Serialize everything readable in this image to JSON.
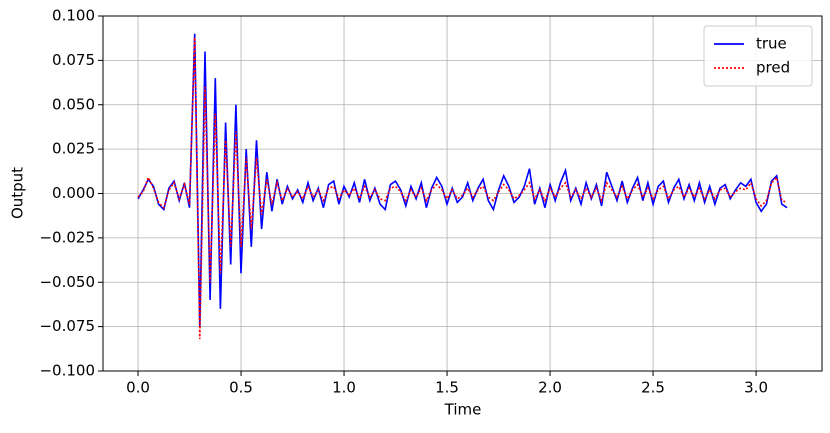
{
  "chart_data": {
    "type": "line",
    "xlabel": "Time",
    "ylabel": "Output",
    "x": [
      0,
      0.025,
      0.05,
      0.075,
      0.1,
      0.125,
      0.15,
      0.175,
      0.2,
      0.225,
      0.25,
      0.275,
      0.3,
      0.325,
      0.35,
      0.375,
      0.4,
      0.425,
      0.45,
      0.475,
      0.5,
      0.525,
      0.55,
      0.575,
      0.6,
      0.625,
      0.65,
      0.675,
      0.7,
      0.725,
      0.75,
      0.775,
      0.8,
      0.825,
      0.85,
      0.875,
      0.9,
      0.925,
      0.95,
      0.975,
      1.0,
      1.025,
      1.05,
      1.075,
      1.1,
      1.125,
      1.15,
      1.175,
      1.2,
      1.225,
      1.25,
      1.275,
      1.3,
      1.325,
      1.35,
      1.375,
      1.4,
      1.425,
      1.45,
      1.475,
      1.5,
      1.525,
      1.55,
      1.575,
      1.6,
      1.625,
      1.65,
      1.675,
      1.7,
      1.725,
      1.75,
      1.775,
      1.8,
      1.825,
      1.85,
      1.875,
      1.9,
      1.925,
      1.95,
      1.975,
      2.0,
      2.025,
      2.05,
      2.075,
      2.1,
      2.125,
      2.15,
      2.175,
      2.2,
      2.225,
      2.25,
      2.275,
      2.3,
      2.325,
      2.35,
      2.375,
      2.4,
      2.425,
      2.45,
      2.475,
      2.5,
      2.525,
      2.55,
      2.575,
      2.6,
      2.625,
      2.65,
      2.675,
      2.7,
      2.725,
      2.75,
      2.775,
      2.8,
      2.825,
      2.85,
      2.875,
      2.9,
      2.925,
      2.95,
      2.975,
      3.0,
      3.025,
      3.05,
      3.075,
      3.1,
      3.125,
      3.15
    ],
    "series": [
      {
        "name": "true",
        "color": "#0000ff",
        "dash": "solid",
        "values": [
          -0.003,
          0.002,
          0.008,
          0.004,
          -0.006,
          -0.009,
          0.003,
          0.007,
          -0.004,
          0.006,
          -0.008,
          0.09,
          -0.075,
          0.08,
          -0.06,
          0.065,
          -0.065,
          0.04,
          -0.04,
          0.05,
          -0.045,
          0.025,
          -0.03,
          0.03,
          -0.02,
          0.012,
          -0.01,
          0.008,
          -0.006,
          0.004,
          -0.003,
          0.002,
          -0.005,
          0.006,
          -0.004,
          0.003,
          -0.008,
          0.005,
          0.007,
          -0.006,
          0.004,
          -0.002,
          0.006,
          -0.005,
          0.008,
          -0.004,
          0.003,
          -0.006,
          -0.009,
          0.005,
          0.007,
          0.002,
          -0.007,
          0.004,
          -0.003,
          0.006,
          -0.008,
          0.003,
          0.009,
          0.004,
          -0.006,
          0.003,
          -0.005,
          -0.002,
          0.006,
          -0.004,
          0.003,
          0.008,
          -0.004,
          -0.009,
          0.002,
          0.01,
          0.004,
          -0.005,
          -0.002,
          0.004,
          0.014,
          -0.006,
          0.003,
          -0.008,
          0.005,
          -0.004,
          0.006,
          0.013,
          -0.004,
          0.003,
          -0.006,
          0.006,
          -0.003,
          0.005,
          -0.007,
          0.012,
          0.004,
          -0.004,
          0.007,
          -0.005,
          0.003,
          0.009,
          -0.004,
          0.006,
          -0.006,
          0.004,
          0.007,
          -0.005,
          0.003,
          0.008,
          -0.003,
          0.005,
          -0.004,
          0.006,
          -0.005,
          0.004,
          -0.006,
          0.003,
          0.005,
          -0.003,
          0.002,
          0.006,
          0.004,
          0.008,
          -0.005,
          -0.01,
          -0.006,
          0.007,
          0.01,
          -0.006,
          -0.008
        ]
      },
      {
        "name": "pred",
        "color": "#ff0000",
        "dash": "dotted",
        "values": [
          -0.002,
          0.001,
          0.009,
          0.003,
          -0.005,
          -0.008,
          0.002,
          0.006,
          -0.003,
          0.005,
          -0.006,
          0.088,
          -0.082,
          0.06,
          -0.05,
          0.045,
          -0.045,
          0.03,
          -0.03,
          0.035,
          -0.03,
          0.02,
          -0.02,
          0.02,
          -0.012,
          0.008,
          -0.006,
          0.006,
          -0.004,
          0.003,
          -0.002,
          0.001,
          -0.003,
          0.004,
          -0.002,
          0.002,
          -0.004,
          0.003,
          0.004,
          -0.003,
          0.002,
          -0.001,
          0.003,
          -0.003,
          0.004,
          -0.002,
          0.002,
          -0.003,
          -0.004,
          0.003,
          0.004,
          0.001,
          -0.004,
          0.002,
          -0.002,
          0.003,
          -0.004,
          0.002,
          0.005,
          0.002,
          -0.003,
          0.002,
          -0.003,
          -0.001,
          0.003,
          -0.002,
          0.002,
          0.004,
          -0.002,
          -0.004,
          0.001,
          0.005,
          0.002,
          -0.003,
          -0.001,
          0.002,
          0.006,
          -0.003,
          0.002,
          -0.004,
          0.003,
          -0.002,
          0.003,
          0.006,
          -0.002,
          0.002,
          -0.003,
          0.003,
          -0.002,
          0.003,
          -0.004,
          0.006,
          0.002,
          -0.002,
          0.004,
          -0.003,
          0.002,
          0.005,
          -0.002,
          0.003,
          -0.003,
          0.002,
          0.004,
          -0.003,
          0.002,
          0.004,
          -0.002,
          0.003,
          -0.002,
          0.003,
          -0.003,
          0.002,
          -0.003,
          0.002,
          0.003,
          -0.002,
          0.001,
          0.003,
          0.002,
          0.006,
          -0.003,
          -0.007,
          -0.004,
          0.006,
          0.009,
          -0.004,
          -0.005
        ]
      }
    ],
    "xlim": [
      -0.17,
      3.32
    ],
    "ylim": [
      -0.1,
      0.1
    ],
    "xticks": [
      {
        "value": 0,
        "label": "0.0"
      },
      0.5,
      {
        "value": 1,
        "label": "1.0"
      },
      1.5,
      {
        "value": 2,
        "label": "2.0"
      },
      2.5,
      {
        "value": 3,
        "label": "3.0"
      }
    ],
    "yticks": [
      {
        "value": -0.1,
        "label": "−0.100"
      },
      {
        "value": -0.075,
        "label": "−0.075"
      },
      {
        "value": -0.05,
        "label": "−0.050"
      },
      {
        "value": -0.025,
        "label": "−0.025"
      },
      {
        "value": 0,
        "label": "0.000"
      },
      {
        "value": 0.025,
        "label": "0.025"
      },
      {
        "value": 0.05,
        "label": "0.050"
      },
      {
        "value": 0.075,
        "label": "0.075"
      },
      {
        "value": 0.1,
        "label": "0.100"
      }
    ],
    "grid": true,
    "legend": "upper right"
  }
}
